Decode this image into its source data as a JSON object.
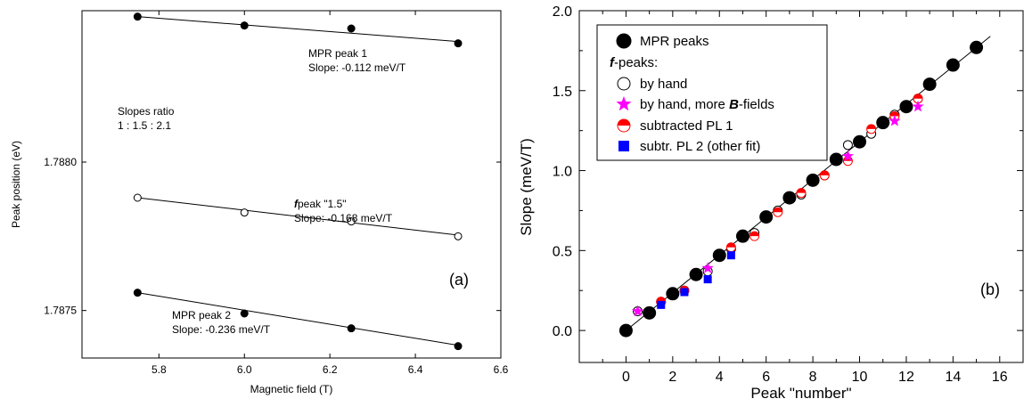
{
  "chart_data": [
    {
      "panel": "(a)",
      "type": "scatter",
      "xlabel": "Magnetic field (T)",
      "ylabel": "Peak position (eV)",
      "xlim": [
        5.62,
        6.6
      ],
      "ylim": [
        1.78734,
        1.78851
      ],
      "xticks": [
        5.8,
        6.0,
        6.2,
        6.4,
        6.6
      ],
      "xtick_labels": [
        "5.8",
        "6.0",
        "6.2",
        "6.4",
        "6.6"
      ],
      "yticks": [
        1.7875,
        1.788
      ],
      "ytick_labels": [
        "1.7875",
        "1.7880"
      ],
      "series": [
        {
          "marker": "filled-circle",
          "x": [
            5.75,
            6.0,
            6.25,
            6.5
          ],
          "y": [
            1.78849,
            1.78846,
            1.78845,
            1.7884
          ],
          "fit": [
            [
              5.75,
              1.78849
            ],
            [
              6.5,
              1.788406
            ]
          ],
          "label_lines": [
            "MPR peak 1",
            "Slope: -0.112 meV/T"
          ]
        },
        {
          "marker": "open-circle",
          "x": [
            5.75,
            6.0,
            6.25,
            6.5
          ],
          "y": [
            1.78788,
            1.78783,
            1.7878,
            1.78775
          ],
          "fit": [
            [
              5.75,
              1.78788
            ],
            [
              6.5,
              1.787754
            ]
          ],
          "label_lines": [
            "f",
            "peak \"1.5\"",
            "Slope: -0.168 meV/T"
          ]
        },
        {
          "marker": "filled-circle",
          "x": [
            5.75,
            6.0,
            6.25,
            6.5
          ],
          "y": [
            1.78756,
            1.78749,
            1.78744,
            1.78738
          ],
          "fit": [
            [
              5.75,
              1.78756
            ],
            [
              6.5,
              1.787383
            ]
          ],
          "label_lines": [
            "MPR peak 2",
            "Slope: -0.236 meV/T"
          ]
        }
      ],
      "annotations": [
        "Slopes ratio",
        "1 : 1.5 : 2.1"
      ]
    },
    {
      "panel": "(b)",
      "type": "scatter",
      "xlabel": "Peak \"number\"",
      "ylabel": "Slope (meV/T)",
      "xlim": [
        -2,
        17
      ],
      "ylim": [
        -0.2,
        2.0
      ],
      "xticks": [
        0,
        2,
        4,
        6,
        8,
        10,
        12,
        14,
        16
      ],
      "xtick_labels": [
        "0",
        "2",
        "4",
        "6",
        "8",
        "10",
        "12",
        "14",
        "16"
      ],
      "yticks": [
        0.0,
        0.5,
        1.0,
        1.5,
        2.0
      ],
      "ytick_labels": [
        "0.0",
        "0.5",
        "1.0",
        "1.5",
        "2.0"
      ],
      "fit_line": [
        [
          0,
          0
        ],
        [
          15.6,
          1.84
        ]
      ],
      "legend_title": "f-peaks:",
      "series": [
        {
          "name": "MPR peaks",
          "marker": "filled-circle",
          "x": [
            0,
            1,
            2,
            3,
            4,
            5,
            6,
            7,
            8,
            9,
            10,
            11,
            12,
            13,
            14,
            15
          ],
          "y": [
            0.0,
            0.11,
            0.23,
            0.35,
            0.47,
            0.59,
            0.71,
            0.83,
            0.94,
            1.07,
            1.18,
            1.3,
            1.4,
            1.54,
            1.66,
            1.77
          ]
        },
        {
          "name": "by hand",
          "marker": "open-circle",
          "x": [
            0.5,
            1.5,
            2.5,
            3.5,
            4.5,
            5.5,
            6.5,
            7.5,
            8.5,
            9.5,
            10.5,
            11.5,
            12.5
          ],
          "y": [
            0.12,
            0.18,
            0.25,
            0.37,
            0.51,
            0.61,
            0.75,
            0.85,
            0.97,
            1.16,
            1.23,
            1.35,
            1.45
          ]
        },
        {
          "name": "by hand, more B-fields",
          "marker": "star",
          "x": [
            0.5,
            3.5,
            9.5,
            11.5,
            12.5
          ],
          "y": [
            0.12,
            0.39,
            1.09,
            1.31,
            1.4
          ]
        },
        {
          "name": "subtracted PL 1",
          "marker": "half-circle",
          "x": [
            1.5,
            2.5,
            4.5,
            5.5,
            6.5,
            7.5,
            8.5,
            9.5,
            10.5,
            11.5,
            12.5
          ],
          "y": [
            0.18,
            0.25,
            0.52,
            0.59,
            0.74,
            0.86,
            0.97,
            1.06,
            1.26,
            1.34,
            1.45
          ]
        },
        {
          "name": "subtr. PL 2 (other fit)",
          "marker": "filled-square",
          "x": [
            1.5,
            2.5,
            3.5,
            4.5
          ],
          "y": [
            0.16,
            0.24,
            0.32,
            0.47
          ]
        }
      ]
    }
  ],
  "colors": {
    "axis": "#000000",
    "star": "#ff00ff",
    "half_circle": "#ff0000",
    "square": "#0000ff"
  }
}
